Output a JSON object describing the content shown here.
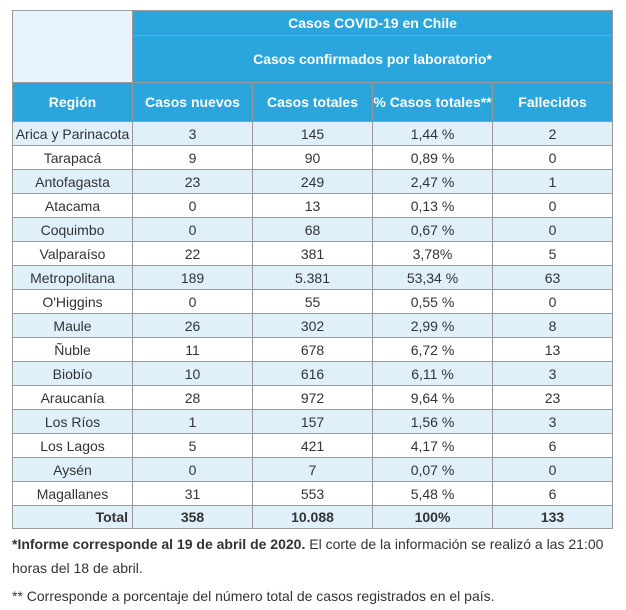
{
  "table": {
    "title": "Casos COVID-19 en Chile",
    "subtitle": "Casos confirmados por laboratorio*",
    "columns": [
      "Región",
      "Casos nuevos",
      "Casos totales",
      "% Casos totales**",
      "Fallecidos"
    ],
    "rows": [
      [
        "Arica y Parinacota",
        "3",
        "145",
        "1,44 %",
        "2"
      ],
      [
        "Tarapacá",
        "9",
        "90",
        "0,89 %",
        "0"
      ],
      [
        "Antofagasta",
        "23",
        "249",
        "2,47 %",
        "1"
      ],
      [
        "Atacama",
        "0",
        "13",
        "0,13 %",
        "0"
      ],
      [
        "Coquimbo",
        "0",
        "68",
        "0,67 %",
        "0"
      ],
      [
        "Valparaíso",
        "22",
        "381",
        "3,78%",
        "5"
      ],
      [
        "Metropolitana",
        "189",
        "5.381",
        "53,34 %",
        "63"
      ],
      [
        "O'Higgins",
        "0",
        "55",
        "0,55 %",
        "0"
      ],
      [
        "Maule",
        "26",
        "302",
        "2,99 %",
        "8"
      ],
      [
        "Ñuble",
        "11",
        "678",
        "6,72 %",
        "13"
      ],
      [
        "Biobío",
        "10",
        "616",
        "6,11 %",
        "3"
      ],
      [
        "Araucanía",
        "28",
        "972",
        "9,64 %",
        "23"
      ],
      [
        "Los Ríos",
        "1",
        "157",
        "1,56 %",
        "3"
      ],
      [
        "Los Lagos",
        "5",
        "421",
        "4,17 %",
        "6"
      ],
      [
        "Aysén",
        "0",
        "7",
        "0,07 %",
        "0"
      ],
      [
        "Magallanes",
        "31",
        "553",
        "5,48 %",
        "6"
      ]
    ],
    "total": [
      "Total",
      "358",
      "10.088",
      "100%",
      "133"
    ]
  },
  "notes": {
    "note1_bold": "*Informe corresponde al 19 de abril de 2020.",
    "note1_rest": " El corte de la información se realizó a las 21:00 horas del 18 de abril.",
    "note2": "** Corresponde a porcentaje del número total de casos registrados en el país."
  },
  "colors": {
    "header_blue": "#2aa6dc",
    "stripe_light_blue": "#dff0fa",
    "header_corner": "#e7f4fb"
  }
}
